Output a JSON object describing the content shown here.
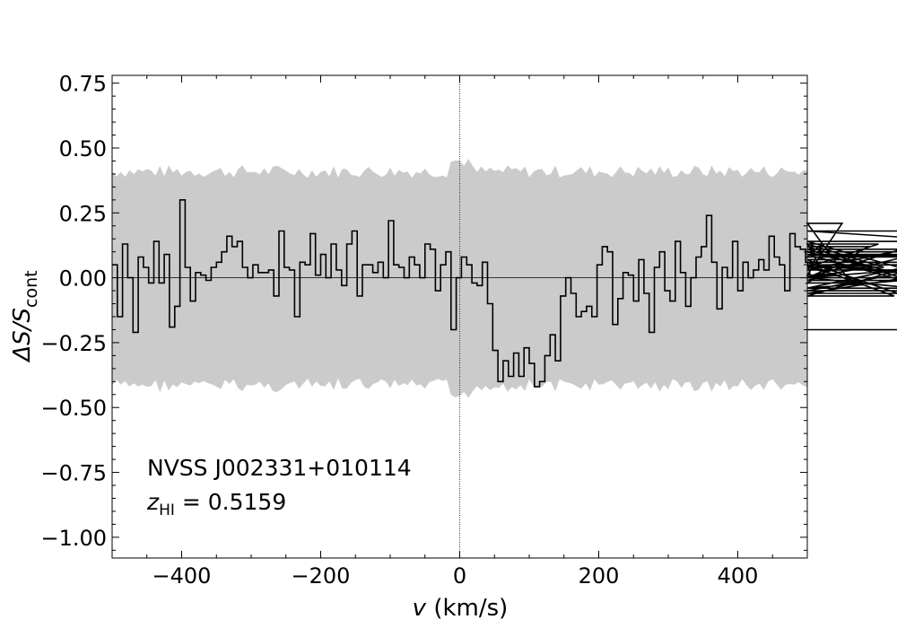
{
  "chart_data": {
    "type": "line",
    "xlabel_var": "v",
    "xlabel_unit": " (km/s)",
    "ylabel_main": "ΔS/S",
    "ylabel_sub": "cont",
    "xlim": [
      -500,
      500
    ],
    "ylim": [
      -1.08,
      0.78
    ],
    "x_ticks": [
      -400,
      -200,
      0,
      200,
      400
    ],
    "x_tick_labels": [
      "−400",
      "−200",
      "0",
      "200",
      "400"
    ],
    "y_ticks": [
      0.75,
      0.5,
      0.25,
      0.0,
      -0.25,
      -0.5,
      -0.75,
      -1.0
    ],
    "y_tick_labels": [
      "0.75",
      "0.50",
      "0.25",
      "0.00",
      "−0.25",
      "−0.50",
      "−0.75",
      "−1.00"
    ],
    "annotation_source": "NVSS J002331+010114",
    "annotation_z_var": "z",
    "annotation_z_sub": "HI",
    "annotation_z_value": " = 0.5159",
    "reference_lines": {
      "x": 0,
      "y": 0
    },
    "colors": {
      "line": "#000000",
      "band": "#cbcbcb"
    },
    "series": [
      {
        "x_start": -500,
        "x_step": 7.5,
        "values": [
          0.05,
          -0.15,
          0.13,
          0.0,
          -0.21,
          0.08,
          0.04,
          -0.02,
          0.14,
          -0.02,
          0.09,
          -0.19,
          -0.11,
          0.3,
          0.04,
          -0.09,
          0.02,
          0.01,
          -0.01,
          0.04,
          0.06,
          0.1,
          0.16,
          0.12,
          0.14,
          0.04,
          0.0,
          0.05,
          0.02,
          0.02,
          0.03,
          -0.07,
          0.18,
          0.04,
          0.03,
          -0.15,
          0.06,
          0.05,
          0.17,
          0.01,
          0.09,
          0.0,
          0.13,
          0.03,
          -0.03,
          0.13,
          0.18,
          -0.07,
          0.05,
          0.05,
          0.02,
          0.06,
          0.0,
          0.22,
          0.05,
          0.04,
          0.0,
          0.08,
          0.05,
          0.0,
          0.13,
          0.11,
          -0.05,
          0.05,
          0.1,
          -0.2,
          0.0,
          0.08,
          0.05,
          -0.02,
          -0.03,
          0.06,
          -0.1,
          -0.28,
          -0.4,
          -0.32,
          -0.38,
          -0.29,
          -0.38,
          -0.27,
          -0.33,
          -0.42,
          -0.4,
          -0.3,
          -0.22,
          -0.32,
          -0.07,
          0.0,
          -0.06,
          -0.15,
          -0.13,
          -0.11,
          -0.15,
          0.05,
          0.12,
          0.1,
          -0.18,
          -0.08,
          0.02,
          0.01,
          -0.09,
          0.07,
          -0.06,
          -0.21,
          0.04,
          0.1,
          -0.05,
          -0.09,
          0.14,
          0.02,
          -0.11,
          0.0,
          0.08,
          0.12,
          0.24,
          0.06,
          -0.12,
          0.04,
          0.0,
          0.14,
          -0.05,
          0.06,
          0.0,
          0.03,
          0.07,
          0.03,
          0.16,
          0.08,
          0.05,
          -0.05,
          0.17,
          0.12,
          0.11,
          0.06,
          0.0,
          0.08,
          0.13,
          0.0,
          0.04,
          0.01,
          0.21,
          0.0,
          0.03,
          0.07,
          -0.02,
          0.12,
          0.04,
          0.13,
          0.04,
          0.05,
          -0.07,
          0.03,
          0.11,
          -0.01,
          0.09,
          0.08,
          0.09,
          -0.04,
          0.0,
          -0.05,
          0.05,
          0.05,
          0.0,
          0.18,
          0.14,
          -0.04,
          0.1,
          -0.06,
          0.05,
          0.0,
          0.06,
          -0.2
        ]
      }
    ]
  }
}
